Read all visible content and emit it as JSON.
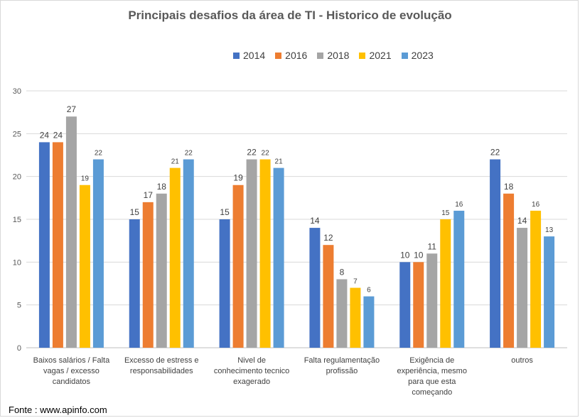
{
  "chart_data": {
    "type": "bar",
    "title": "Principais desafios da área de TI - Historico de evolução",
    "xlabel": "",
    "ylabel": "",
    "ylim": [
      0,
      30
    ],
    "yticks": [
      0,
      5,
      10,
      15,
      20,
      25,
      30
    ],
    "grid": true,
    "legend_position": "top",
    "categories": [
      [
        "Baixos salários / Falta",
        "vagas / excesso",
        "candidatos"
      ],
      [
        "Excesso de estress e",
        "responsabilidades"
      ],
      [
        "Nivel de",
        "conhecimento tecnico",
        "exagerado"
      ],
      [
        "Falta regulamentação",
        "profissão"
      ],
      [
        "Exigência de",
        "experiência, mesmo",
        "para que esta",
        "começando"
      ],
      [
        "outros"
      ]
    ],
    "series": [
      {
        "name": "2014",
        "color": "#4472c4",
        "values": [
          24,
          15,
          15,
          14,
          10,
          22
        ]
      },
      {
        "name": "2016",
        "color": "#ed7d31",
        "values": [
          24,
          17,
          19,
          12,
          10,
          18
        ]
      },
      {
        "name": "2018",
        "color": "#a5a5a5",
        "values": [
          27,
          18,
          22,
          8,
          11,
          14
        ]
      },
      {
        "name": "2021",
        "color": "#ffc000",
        "values": [
          19,
          21,
          22,
          7,
          15,
          16
        ]
      },
      {
        "name": "2023",
        "color": "#5b9bd5",
        "values": [
          22,
          22,
          21,
          6,
          16,
          13
        ]
      }
    ]
  },
  "source": "Fonte : www.apinfo.com"
}
